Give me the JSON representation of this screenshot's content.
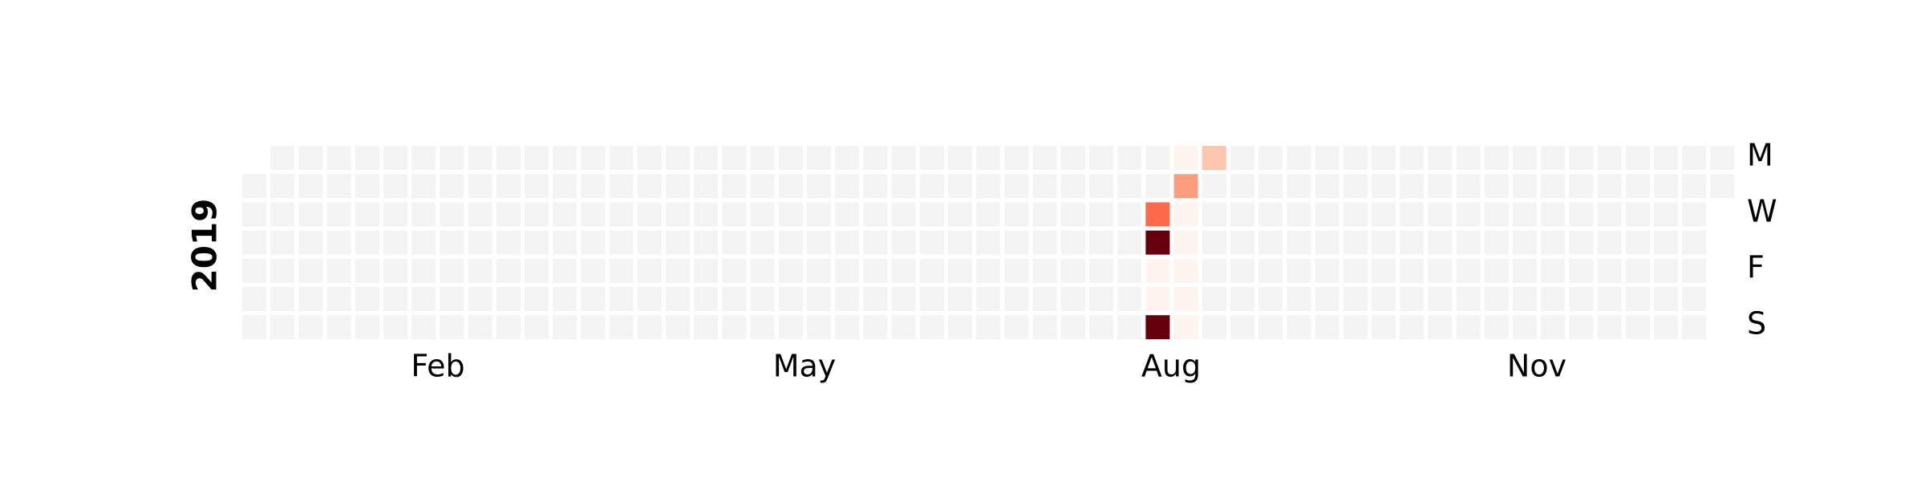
{
  "chart_data": {
    "type": "heatmap",
    "subtype": "calendar",
    "year_label": "2019",
    "month_labels": [
      "Feb",
      "May",
      "Aug",
      "Nov"
    ],
    "day_labels": [
      "M",
      "W",
      "F",
      "S"
    ],
    "x_label_dates": [
      "2019-02-01",
      "2019-05-01",
      "2019-08-01",
      "2019-11-01"
    ],
    "y_label_weekdays": [
      "Mon",
      "Wed",
      "Fri",
      "Sat"
    ],
    "date_range": [
      "2019-01-01",
      "2019-12-31"
    ],
    "week_start": "Monday",
    "colormap": "Reds",
    "empty_color": "#f4f4f4",
    "grid": false,
    "legend": "none",
    "values": [
      {
        "date": "2019-08-14",
        "value": 0.64,
        "color": "#fb6a4a"
      },
      {
        "date": "2019-08-15",
        "value": 1.0,
        "color": "#67000d"
      },
      {
        "date": "2019-08-16",
        "value": 0.02,
        "color": "#fff5f0"
      },
      {
        "date": "2019-08-17",
        "value": 0.02,
        "color": "#fff5f0"
      },
      {
        "date": "2019-08-18",
        "value": 1.0,
        "color": "#67000d"
      },
      {
        "date": "2019-08-19",
        "value": 0.02,
        "color": "#fff5f0"
      },
      {
        "date": "2019-08-20",
        "value": 0.42,
        "color": "#fc9d7f"
      },
      {
        "date": "2019-08-21",
        "value": 0.02,
        "color": "#fff5f0"
      },
      {
        "date": "2019-08-22",
        "value": 0.02,
        "color": "#fff5f0"
      },
      {
        "date": "2019-08-23",
        "value": 0.02,
        "color": "#fff5f0"
      },
      {
        "date": "2019-08-24",
        "value": 0.02,
        "color": "#fff5f0"
      },
      {
        "date": "2019-08-25",
        "value": 0.02,
        "color": "#fff5f0"
      },
      {
        "date": "2019-08-26",
        "value": 0.25,
        "color": "#fdc6b0"
      }
    ]
  }
}
